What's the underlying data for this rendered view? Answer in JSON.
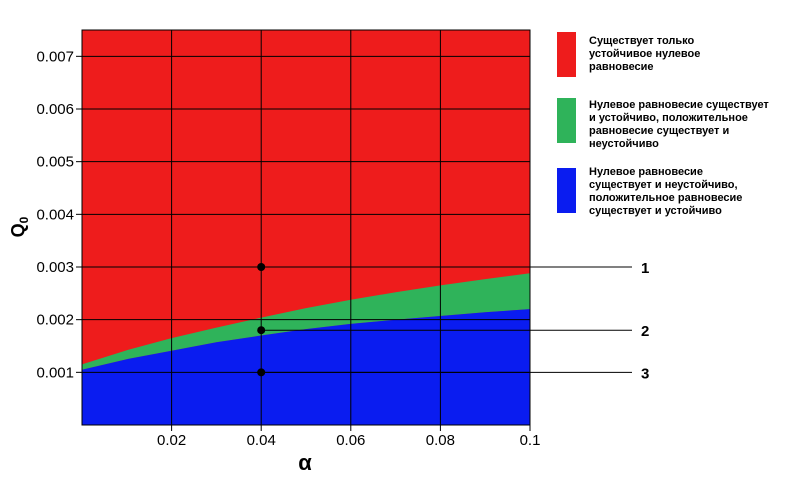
{
  "chart_data": {
    "type": "area",
    "xlabel": "α",
    "ylabel": "Q",
    "ylabel_subscript": "0",
    "xlim": [
      0.0,
      0.1
    ],
    "ylim": [
      0.0,
      0.0075
    ],
    "xticks": [
      "0.02",
      "0.04",
      "0.06",
      "0.08",
      "0.1"
    ],
    "yticks": [
      "0.001",
      "0.002",
      "0.003",
      "0.004",
      "0.005",
      "0.006",
      "0.007"
    ],
    "grid": true,
    "legend_position": "right",
    "regions": [
      {
        "name": "Существует только устойчивое нулевое равновесие",
        "lines": [
          "Существует только",
          "устойчивое нулевое",
          "равновесие"
        ],
        "color": "#ee1c1c"
      },
      {
        "name": "Нулевое равновесие существует и устойчиво, положительное равновесие существует и неустойчиво",
        "lines": [
          "Нулевое равновесие существует",
          "и устойчиво, положительное",
          "равновесие существует и",
          "неустойчиво"
        ],
        "color": "#2fb35a"
      },
      {
        "name": "Нулевое равновесие существует и неустойчиво, положительное равновесие существует и устойчиво",
        "lines": [
          "Нулевое равновесие",
          "существует и неустойчиво,",
          "положительное равновесие",
          "существует и устойчиво"
        ],
        "color": "#0a1cf0"
      }
    ],
    "upper_boundary": {
      "x": [
        0.0,
        0.01,
        0.02,
        0.03,
        0.04,
        0.05,
        0.06,
        0.07,
        0.08,
        0.09,
        0.1
      ],
      "y": [
        0.00115,
        0.00142,
        0.00165,
        0.00185,
        0.00204,
        0.00222,
        0.00238,
        0.00252,
        0.00265,
        0.00277,
        0.00288
      ]
    },
    "lower_boundary": {
      "x": [
        0.0,
        0.01,
        0.02,
        0.03,
        0.04,
        0.05,
        0.06,
        0.07,
        0.08,
        0.09,
        0.1
      ],
      "y": [
        0.00105,
        0.00125,
        0.00141,
        0.00157,
        0.0017,
        0.00182,
        0.00192,
        0.002,
        0.00207,
        0.00214,
        0.0022
      ]
    },
    "points": [
      {
        "label": "1",
        "x": 0.04,
        "y": 0.003
      },
      {
        "label": "2",
        "x": 0.04,
        "y": 0.0018
      },
      {
        "label": "3",
        "x": 0.04,
        "y": 0.001
      }
    ]
  }
}
